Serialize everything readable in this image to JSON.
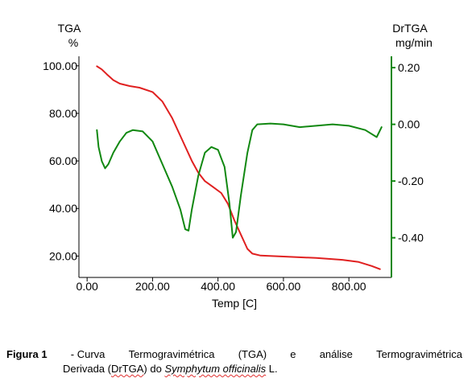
{
  "chart_data": {
    "type": "line",
    "xlabel": "Temp  [C]",
    "xlim": [
      -25,
      930
    ],
    "xticks": [
      "0.00",
      "200.00",
      "400.00",
      "600.00",
      "800.00"
    ],
    "xtick_values": [
      0,
      200,
      400,
      600,
      800
    ],
    "y_left": {
      "label_line1": "TGA",
      "label_line2": "%",
      "lim": [
        11,
        104
      ],
      "ticks": [
        "100.00",
        "80.00",
        "60.00",
        "40.00",
        "20.00"
      ],
      "tick_values": [
        100,
        80,
        60,
        40,
        20
      ]
    },
    "y_right": {
      "label_line1": "DrTGA",
      "label_line2": "mg/min",
      "lim": [
        -0.54,
        0.24
      ],
      "ticks": [
        "0.20",
        "0.00",
        "-0.20",
        "-0.40"
      ],
      "tick_values": [
        0.2,
        0.0,
        -0.2,
        -0.4
      ]
    },
    "grid": false,
    "series": [
      {
        "axis": "left",
        "color": "#e02020",
        "points": [
          [
            30,
            99.8
          ],
          [
            45,
            98.5
          ],
          [
            60,
            96.5
          ],
          [
            80,
            94
          ],
          [
            100,
            92.5
          ],
          [
            130,
            91.5
          ],
          [
            160,
            90.8
          ],
          [
            200,
            89
          ],
          [
            230,
            85
          ],
          [
            260,
            78
          ],
          [
            290,
            69
          ],
          [
            320,
            60
          ],
          [
            340,
            55
          ],
          [
            360,
            51.5
          ],
          [
            385,
            49
          ],
          [
            410,
            46.5
          ],
          [
            430,
            42
          ],
          [
            450,
            35
          ],
          [
            470,
            29
          ],
          [
            490,
            23
          ],
          [
            505,
            21
          ],
          [
            530,
            20.2
          ],
          [
            600,
            19.8
          ],
          [
            700,
            19.2
          ],
          [
            780,
            18.4
          ],
          [
            830,
            17.5
          ],
          [
            870,
            15.8
          ],
          [
            895,
            14.5
          ]
        ]
      },
      {
        "axis": "right",
        "color": "#118811",
        "points": [
          [
            30,
            -0.02
          ],
          [
            35,
            -0.08
          ],
          [
            45,
            -0.13
          ],
          [
            55,
            -0.155
          ],
          [
            65,
            -0.14
          ],
          [
            80,
            -0.1
          ],
          [
            100,
            -0.06
          ],
          [
            120,
            -0.03
          ],
          [
            140,
            -0.02
          ],
          [
            170,
            -0.025
          ],
          [
            200,
            -0.06
          ],
          [
            230,
            -0.14
          ],
          [
            260,
            -0.22
          ],
          [
            285,
            -0.3
          ],
          [
            300,
            -0.37
          ],
          [
            310,
            -0.375
          ],
          [
            320,
            -0.3
          ],
          [
            340,
            -0.18
          ],
          [
            360,
            -0.1
          ],
          [
            380,
            -0.08
          ],
          [
            400,
            -0.09
          ],
          [
            420,
            -0.15
          ],
          [
            435,
            -0.28
          ],
          [
            445,
            -0.4
          ],
          [
            455,
            -0.38
          ],
          [
            470,
            -0.25
          ],
          [
            490,
            -0.1
          ],
          [
            505,
            -0.02
          ],
          [
            520,
            0.0
          ],
          [
            560,
            0.003
          ],
          [
            600,
            0.0
          ],
          [
            650,
            -0.01
          ],
          [
            700,
            -0.005
          ],
          [
            750,
            0.0
          ],
          [
            800,
            -0.005
          ],
          [
            850,
            -0.02
          ],
          [
            885,
            -0.045
          ],
          [
            900,
            -0.01
          ]
        ]
      }
    ]
  },
  "caption": {
    "figure_label": "Figura 1",
    "line1_rest": [
      " - Curva",
      "Termogravimétrica",
      "(TGA)",
      "e",
      "análise",
      "Termogravimétrica"
    ],
    "line2_a": "Derivada (",
    "line2_abbrev": "DrTGA",
    "line2_b": ") do ",
    "species": "Symphytum officinalis",
    "line2_c": " L."
  }
}
